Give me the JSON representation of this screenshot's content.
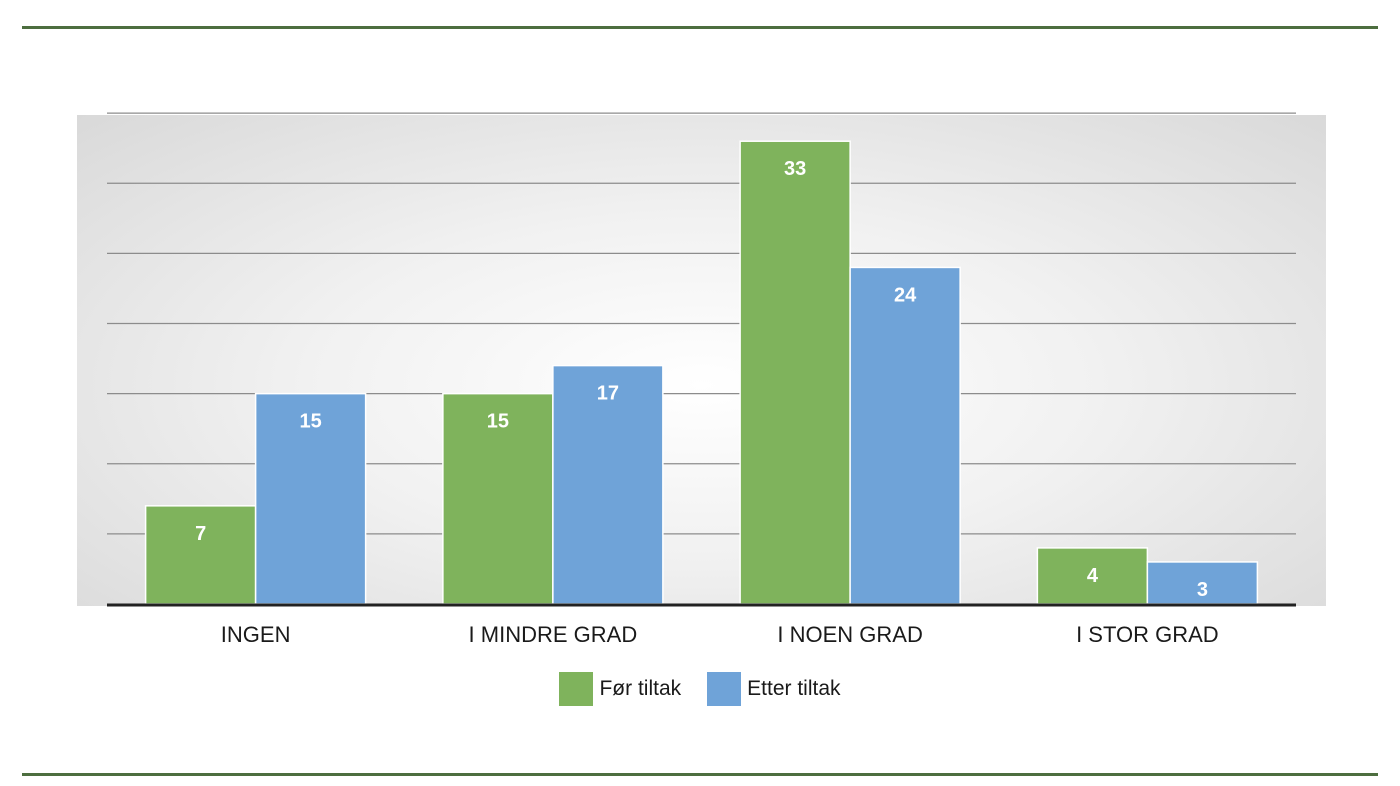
{
  "chart_data": {
    "type": "bar",
    "title": "",
    "xlabel": "",
    "ylabel": "",
    "categories": [
      "INGEN",
      "I MINDRE GRAD",
      "I NOEN GRAD",
      "I STOR GRAD"
    ],
    "series": [
      {
        "name": "Før tiltak",
        "values": [
          7,
          15,
          33,
          4
        ],
        "color": "#7fb35c"
      },
      {
        "name": "Etter tiltak",
        "values": [
          15,
          17,
          24,
          3
        ],
        "color": "#6fa3d8"
      }
    ],
    "ylim": [
      0,
      35
    ],
    "grid": true,
    "data_labels": true,
    "legend_position": "bottom"
  }
}
